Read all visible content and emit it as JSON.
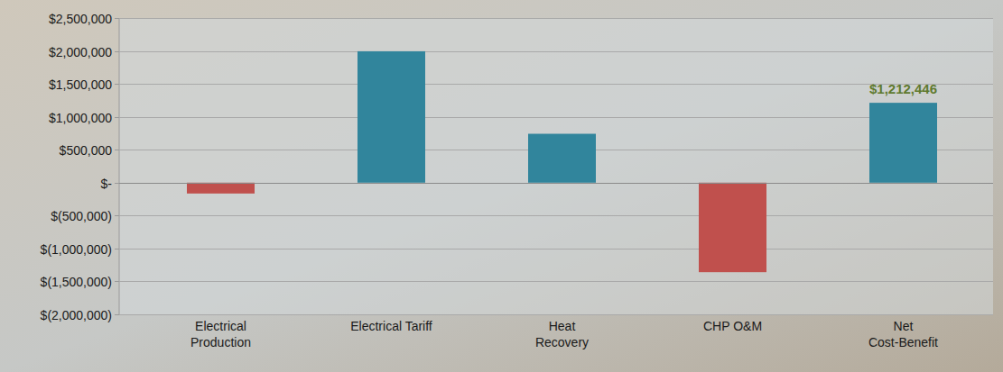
{
  "chart_data": {
    "type": "bar",
    "categories": [
      "Electrical Production",
      "Electrical Tariff",
      "Heat Recovery",
      "CHP O&M",
      "Net Cost-Benefit"
    ],
    "values": [
      -165000,
      1995000,
      742000,
      -1359554,
      1212446
    ],
    "colors": [
      "#c0504d",
      "#31859c",
      "#31859c",
      "#c0504d",
      "#31859c"
    ],
    "data_labels": true,
    "value_labels": [
      null,
      null,
      null,
      null,
      "$1,212,446"
    ],
    "ylim": [
      -2000000,
      2500000
    ],
    "yticks": [
      {
        "value": -2000000,
        "label": "$(2,000,000)"
      },
      {
        "value": -1500000,
        "label": "$(1,500,000)"
      },
      {
        "value": -1000000,
        "label": "$(1,000,000)"
      },
      {
        "value": -500000,
        "label": "$(500,000)"
      },
      {
        "value": 0,
        "label": "$-"
      },
      {
        "value": 500000,
        "label": "$500,000"
      },
      {
        "value": 1000000,
        "label": "$1,000,000"
      },
      {
        "value": 1500000,
        "label": "$1,500,000"
      },
      {
        "value": 2000000,
        "label": "$2,000,000"
      },
      {
        "value": 2500000,
        "label": "$2,500,000"
      }
    ],
    "grid": true
  }
}
